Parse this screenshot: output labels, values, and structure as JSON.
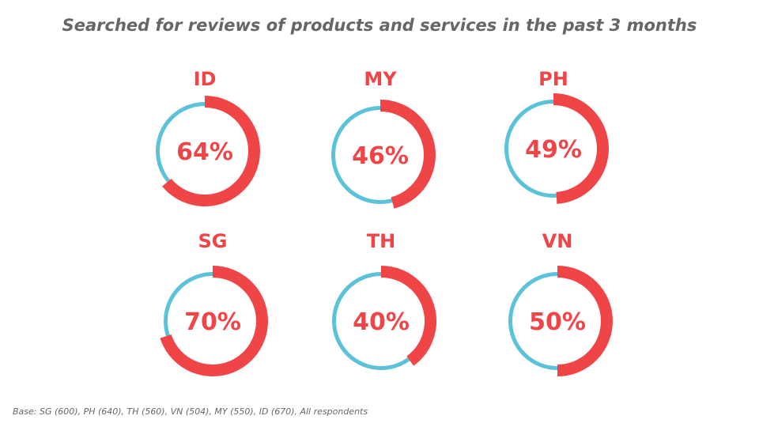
{
  "chart_data": {
    "type": "pie",
    "title": "Searched for reviews of products and services in the past 3 months",
    "items": [
      {
        "label": "ID",
        "value": 64,
        "text": "64%"
      },
      {
        "label": "MY",
        "value": 46,
        "text": "46%"
      },
      {
        "label": "PH",
        "value": 49,
        "text": "49%"
      },
      {
        "label": "SG",
        "value": 70,
        "text": "70%"
      },
      {
        "label": "TH",
        "value": 40,
        "text": "40%"
      },
      {
        "label": "VN",
        "value": 50,
        "text": "50%"
      }
    ],
    "colors": {
      "value": "#EF4547",
      "remainder": "#5BC2D9",
      "label": "#EF4547"
    }
  },
  "footnote": "Base: SG (600), PH (640), TH (560), VN (504), MY (550), ID (670), All respondents"
}
